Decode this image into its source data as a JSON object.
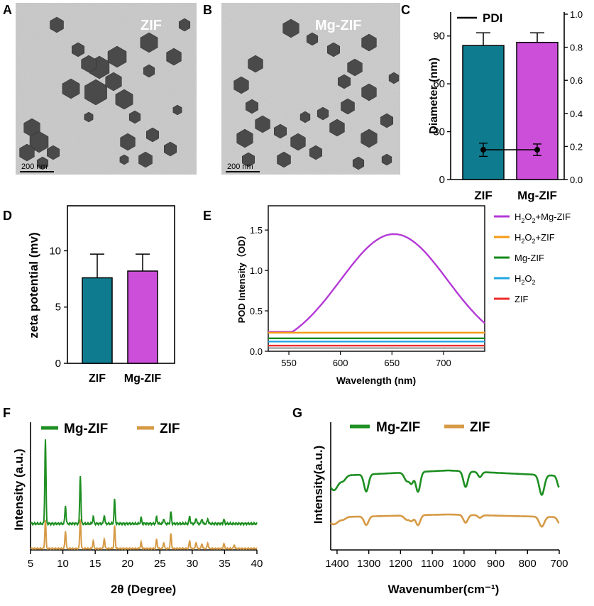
{
  "colors": {
    "teal": "#0f7b8e",
    "magenta": "#cc4fd9",
    "purple": "#b43ad6",
    "orange": "#f59a12",
    "green": "#148a1b",
    "blue": "#22a7e6",
    "red": "#ef2b2b",
    "xrd_zif": "#d69a45",
    "xrd_mg": "#1e8f22"
  },
  "panels": {
    "A": {
      "letter": "A",
      "label": "ZIF",
      "scale_bar": "200 nm"
    },
    "B": {
      "letter": "B",
      "label": "Mg-ZIF",
      "scale_bar": "200 nm"
    },
    "C": {
      "letter": "C"
    },
    "D": {
      "letter": "D"
    },
    "E": {
      "letter": "E"
    },
    "F": {
      "letter": "F"
    },
    "G": {
      "letter": "G"
    }
  },
  "chart_data": [
    {
      "id": "C",
      "type": "bar",
      "categories": [
        "ZIF",
        "Mg-ZIF"
      ],
      "values": [
        84,
        86
      ],
      "errors": [
        8,
        6
      ],
      "ylabel": "Diameter (nm)",
      "ylim": [
        0,
        105
      ],
      "yticks": [
        "0",
        "30",
        "60",
        "90"
      ],
      "y2lim": [
        0,
        1.0
      ],
      "y2ticks": [
        "0.0",
        "0.2",
        "0.4",
        "0.6",
        "0.8",
        "1.0"
      ],
      "legend": "PDI",
      "pdi_values": [
        0.18,
        0.18
      ],
      "pdi_errors": [
        0.04,
        0.035
      ]
    },
    {
      "id": "D",
      "type": "bar",
      "categories": [
        "ZIF",
        "Mg-ZIF"
      ],
      "values": [
        7.6,
        8.2
      ],
      "errors": [
        2.1,
        1.5
      ],
      "ylabel": "zeta potential (mv)",
      "ylim": [
        0,
        14
      ],
      "yticks": [
        "0",
        "5",
        "10"
      ]
    },
    {
      "id": "E",
      "type": "line",
      "xlabel": "Wavelength (nm)",
      "ylabel": "POD Intensity（OD）",
      "xlim": [
        530,
        740
      ],
      "ylim": [
        0,
        1.8
      ],
      "xticks": [
        "550",
        "600",
        "650",
        "700"
      ],
      "yticks": [
        "0.0",
        "0.5",
        "1.0",
        "1.5"
      ],
      "series": [
        {
          "name": "H2O2+Mg-ZIF",
          "sub": "2",
          "display": [
            "H",
            "2",
            "O",
            "2",
            "+Mg-ZIF"
          ],
          "peak": 1.45,
          "center": 652,
          "width": 52,
          "base": 0.24
        },
        {
          "name": "H2O2+ZIF",
          "display": [
            "H",
            "2",
            "O",
            "2",
            "+ZIF"
          ],
          "flat": 0.23
        },
        {
          "name": "Mg-ZIF",
          "display": [
            "Mg-ZIF"
          ],
          "flat": 0.16
        },
        {
          "name": "H2O2",
          "display": [
            "H",
            "2",
            "O",
            "2",
            ""
          ],
          "flat": 0.12
        },
        {
          "name": "ZIF",
          "display": [
            "ZIF"
          ],
          "flat": 0.07
        }
      ],
      "extra_flat": [
        0.04
      ]
    },
    {
      "id": "F",
      "type": "line",
      "xlabel": "2θ (Degree)",
      "ylabel": "Intensity (a.u.)",
      "xlim": [
        5,
        40
      ],
      "xticks": [
        "5",
        "10",
        "15",
        "20",
        "25",
        "30",
        "35",
        "40"
      ],
      "legend": [
        "Mg-ZIF",
        "ZIF"
      ],
      "peaks_mg": [
        [
          7.3,
          1.0
        ],
        [
          10.4,
          0.21
        ],
        [
          12.7,
          0.57
        ],
        [
          14.7,
          0.08
        ],
        [
          16.4,
          0.1
        ],
        [
          18.0,
          0.28
        ],
        [
          22.1,
          0.07
        ],
        [
          24.5,
          0.08
        ],
        [
          25.6,
          0.06
        ],
        [
          26.7,
          0.14
        ],
        [
          29.6,
          0.09
        ],
        [
          30.6,
          0.07
        ],
        [
          31.5,
          0.06
        ],
        [
          32.4,
          0.06
        ],
        [
          34.9,
          0.05
        ]
      ],
      "peaks_zif": [
        [
          7.3,
          0.58
        ],
        [
          10.4,
          0.35
        ],
        [
          12.7,
          0.6
        ],
        [
          14.7,
          0.15
        ],
        [
          16.4,
          0.2
        ],
        [
          18.0,
          0.45
        ],
        [
          22.1,
          0.12
        ],
        [
          24.5,
          0.19
        ],
        [
          25.6,
          0.12
        ],
        [
          26.7,
          0.3
        ],
        [
          29.6,
          0.16
        ],
        [
          30.6,
          0.13
        ],
        [
          31.5,
          0.1
        ],
        [
          32.4,
          0.11
        ],
        [
          34.9,
          0.1
        ],
        [
          36.5,
          0.07
        ]
      ]
    },
    {
      "id": "G",
      "type": "line",
      "xlabel": "Wavenumber(cm⁻¹)",
      "ylabel": "Intensity(a.u.)",
      "xlim": [
        1420,
        700
      ],
      "xticks": [
        "1400",
        "1300",
        "1200",
        "1100",
        "1000",
        "900",
        "800",
        "700"
      ],
      "legend": [
        "Mg-ZIF",
        "ZIF"
      ],
      "dips": [
        [
          1410,
          0.5,
          14
        ],
        [
          1380,
          0.15,
          8
        ],
        [
          1308,
          0.6,
          7
        ],
        [
          1180,
          0.3,
          8
        ],
        [
          1165,
          0.35,
          6
        ],
        [
          1145,
          0.7,
          7
        ],
        [
          995,
          0.55,
          7
        ],
        [
          950,
          0.18,
          6
        ],
        [
          755,
          0.7,
          8
        ],
        [
          700,
          0.4,
          6
        ]
      ]
    }
  ]
}
